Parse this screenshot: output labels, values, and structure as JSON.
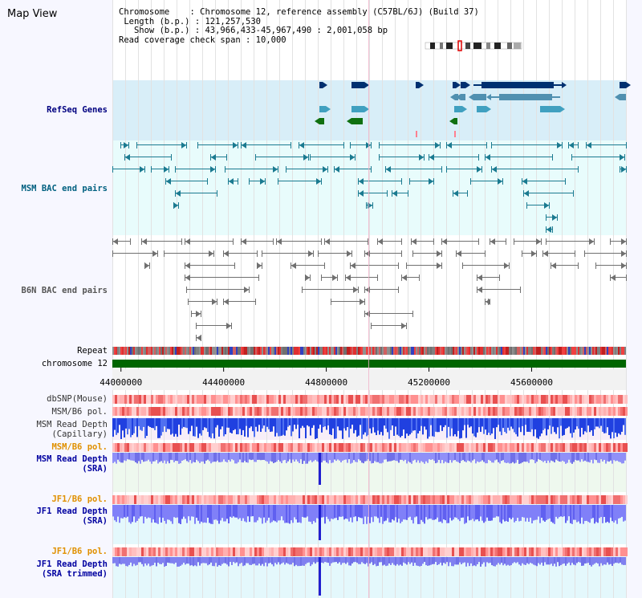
{
  "title": "Map View",
  "info": {
    "chromosome": "Chromosome    : Chromosome 12, reference assembly (C57BL/6J) (Build 37)",
    "length": " Length (b.p.) : 121,257,530",
    "show": "   Show (b.p.) : 43,966,433-45,967,490 : 2,001,058 bp",
    "coverage": "Read coverage check span : 10,000"
  },
  "labels": {
    "refseq": "RefSeq Genes",
    "msm_bac": "MSM BAC end pairs",
    "b6n_bac": "B6N BAC end pairs",
    "repeat": "Repeat",
    "chromosome": "chromosome 12",
    "dbsnp": "dbSNP(Mouse)",
    "msm_b6_pol_1": "MSM/B6 pol.",
    "msm_read_depth_cap_1": "MSM Read Depth",
    "msm_read_depth_cap_2": "(Capillary)",
    "msm_b6_pol_2": "MSM/B6 pol.",
    "msm_read_depth_sra_1": "MSM Read Depth",
    "msm_read_depth_sra_2": "(SRA)",
    "jf1_b6_pol_1": "JF1/B6 pol.",
    "jf1_read_depth_sra_1": "JF1 Read Depth",
    "jf1_read_depth_sra_2": "(SRA)",
    "jf1_b6_pol_2": "JF1/B6 pol.",
    "jf1_read_depth_trim_1": "JF1 Read Depth",
    "jf1_read_depth_trim_2": "(SRA trimmed)"
  },
  "axis": {
    "ticks": [
      "44000000",
      "44400000",
      "44800000",
      "45200000",
      "45600000"
    ],
    "tick_values": [
      44000000,
      44400000,
      44800000,
      45200000,
      45600000
    ],
    "range": [
      43966433,
      45967490
    ]
  },
  "colors": {
    "refseq_label": "#000080",
    "msm_bac_label": "#006080",
    "b6n_bac_label": "#555555",
    "track_label_blue": "#0000a0",
    "track_label_orange": "#e09000",
    "refseq_bg": "#d8eef8",
    "msm_bg": "#e8fcfc",
    "white_bg": "#ffffff",
    "chromosome_bar": "#006600"
  }
}
